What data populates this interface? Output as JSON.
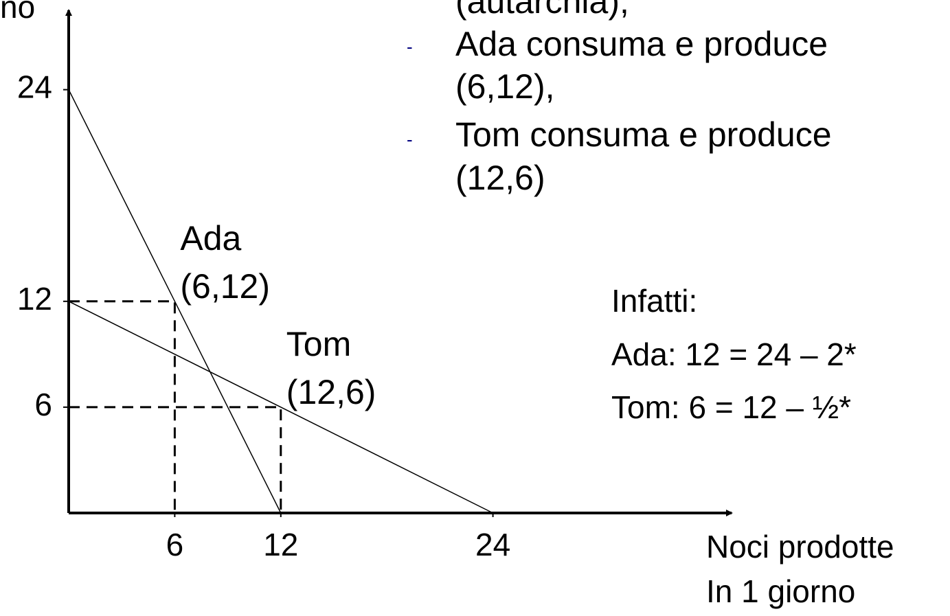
{
  "chart_data": {
    "type": "line",
    "y_axis_label": "no",
    "x_axis_label": [
      "Noci prodotte",
      "In 1 giorno"
    ],
    "xlim": [
      0,
      37.5
    ],
    "ylim": [
      0,
      28.5
    ],
    "xticks": [
      6,
      12,
      24
    ],
    "yticks": [
      6,
      12,
      24
    ],
    "series": [
      {
        "name": "Ada",
        "color": "#000000",
        "x": [
          0,
          12
        ],
        "values": [
          24,
          0
        ]
      },
      {
        "name": "Tom",
        "color": "#000000",
        "x": [
          0,
          24
        ],
        "values": [
          12,
          0
        ]
      }
    ],
    "points": [
      {
        "name": "Ada",
        "label": "(6,12)",
        "x": 6,
        "y": 12
      },
      {
        "name": "Tom",
        "label": "(12,6)",
        "x": 12,
        "y": 6
      }
    ],
    "notes": {
      "intro": "(autarchia);",
      "bullets": [
        {
          "marker": "-",
          "lines": [
            "Ada consuma e produce",
            "(6,12),"
          ]
        },
        {
          "marker": "-",
          "lines": [
            "Tom consuma e produce",
            "(12,6)"
          ]
        }
      ],
      "explanation": [
        "Infatti:",
        "Ada: 12 = 24 – 2*",
        "Tom: 6 = 12 – ½*"
      ]
    }
  }
}
